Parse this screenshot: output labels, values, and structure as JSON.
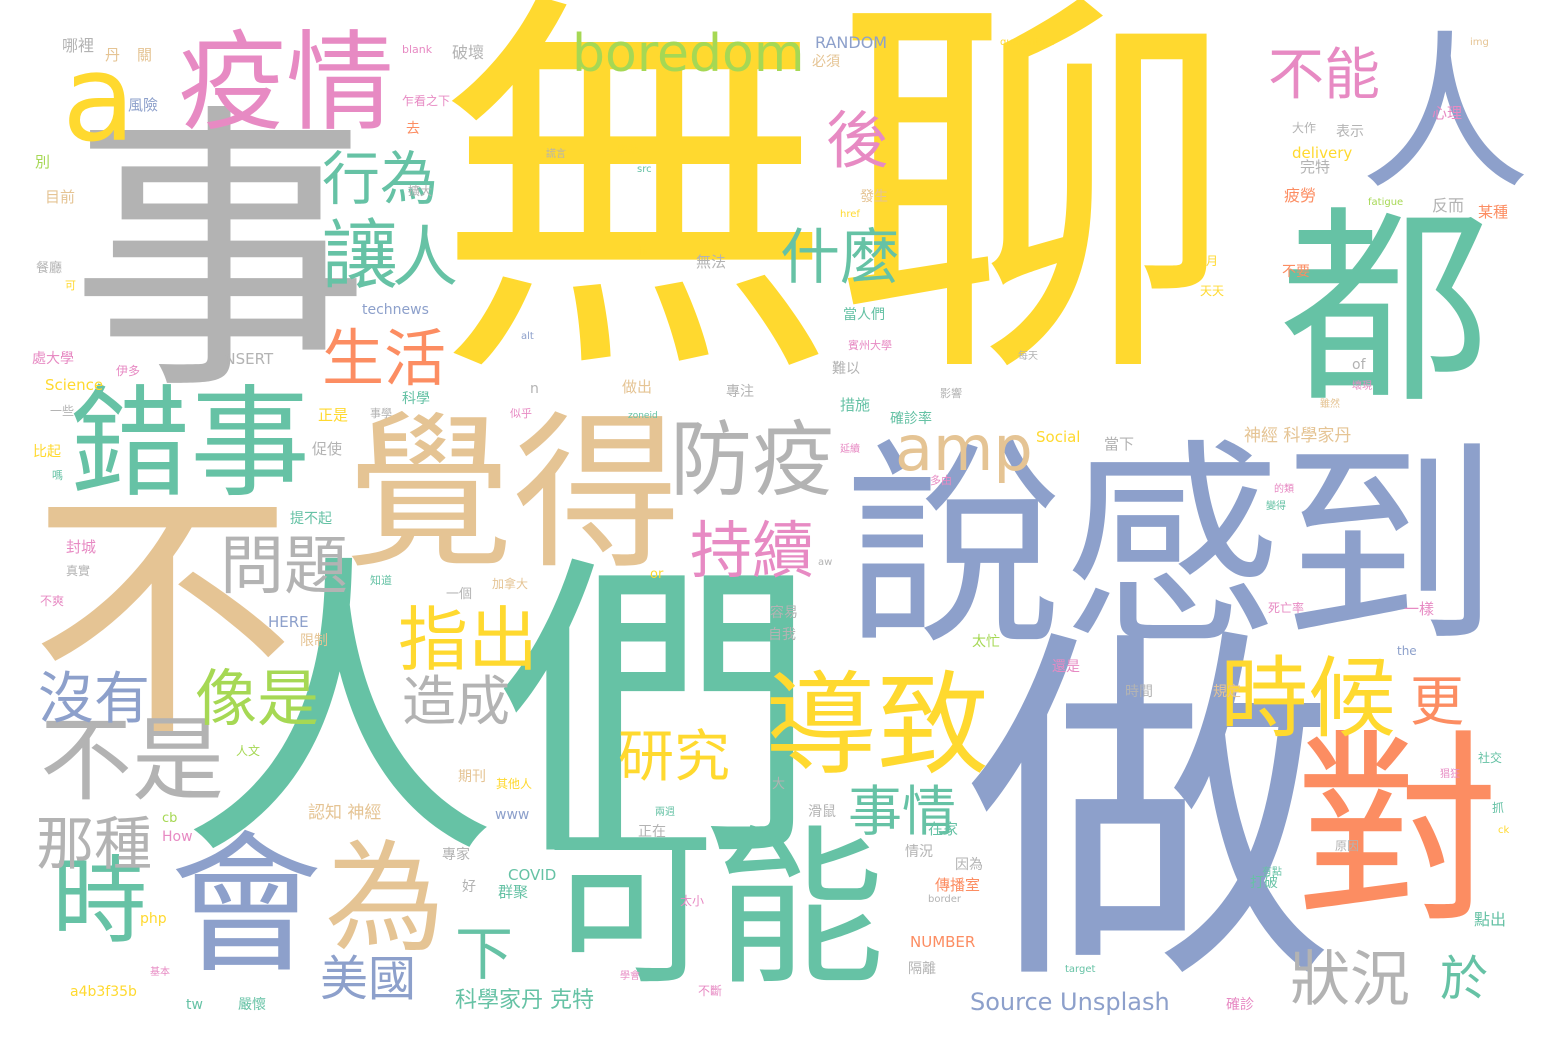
{
  "palette": {
    "yellow": "#FFD92F",
    "gray": "#B3B3B3",
    "green": "#66C2A5",
    "blue": "#8DA0CB",
    "tan": "#E5C494",
    "pink": "#E78AC3",
    "orange": "#FC8D62",
    "lime": "#A6D854"
  },
  "words": [
    {
      "text": "無聊",
      "color": "yellow"
    },
    {
      "text": "事",
      "color": "gray"
    },
    {
      "text": "人們",
      "color": "green"
    },
    {
      "text": "不",
      "color": "tan"
    },
    {
      "text": "做",
      "color": "blue"
    },
    {
      "text": "說感到",
      "color": "blue"
    },
    {
      "text": "都",
      "color": "green"
    },
    {
      "text": "覺得",
      "color": "tan"
    },
    {
      "text": "疫情",
      "color": "pink"
    },
    {
      "text": "會",
      "color": "blue"
    },
    {
      "text": "可能",
      "color": "green"
    },
    {
      "text": "對",
      "color": "orange"
    },
    {
      "text": "人",
      "color": "blue"
    },
    {
      "text": "錯事",
      "color": "green"
    },
    {
      "text": "為",
      "color": "tan"
    },
    {
      "text": "導致",
      "color": "yellow"
    },
    {
      "text": "防疫",
      "color": "gray"
    },
    {
      "text": "時候",
      "color": "yellow"
    },
    {
      "text": "不是",
      "color": "gray"
    },
    {
      "text": "a",
      "color": "yellow"
    },
    {
      "text": "boredom",
      "color": "lime"
    },
    {
      "text": "不能",
      "color": "pink"
    },
    {
      "text": "時",
      "color": "green"
    },
    {
      "text": "後",
      "color": "pink"
    },
    {
      "text": "讓",
      "color": "green"
    },
    {
      "text": "人",
      "color": "green"
    },
    {
      "text": "行為",
      "color": "green"
    },
    {
      "text": "什麼",
      "color": "green"
    },
    {
      "text": "amp",
      "color": "tan"
    },
    {
      "text": "生活",
      "color": "orange"
    },
    {
      "text": "持續",
      "color": "pink"
    },
    {
      "text": "指出",
      "color": "yellow"
    },
    {
      "text": "問題",
      "color": "gray"
    },
    {
      "text": "像是",
      "color": "lime"
    },
    {
      "text": "沒有",
      "color": "blue"
    },
    {
      "text": "造成",
      "color": "gray"
    },
    {
      "text": "研究",
      "color": "yellow"
    },
    {
      "text": "那種",
      "color": "gray"
    },
    {
      "text": "事情",
      "color": "green"
    },
    {
      "text": "更",
      "color": "orange"
    },
    {
      "text": "下",
      "color": "green"
    },
    {
      "text": "美國",
      "color": "blue"
    },
    {
      "text": "狀況",
      "color": "gray"
    },
    {
      "text": "於",
      "color": "green"
    },
    {
      "text": "Source Unsplash",
      "color": "blue"
    },
    {
      "text": "科學家丹 克特",
      "color": "green"
    },
    {
      "text": "RANDOM",
      "color": "blue"
    },
    {
      "text": "NUMBER",
      "color": "orange"
    },
    {
      "text": "INSERT",
      "color": "gray"
    },
    {
      "text": "HERE",
      "color": "blue"
    },
    {
      "text": "COVID",
      "color": "green"
    },
    {
      "text": "technews",
      "color": "blue"
    },
    {
      "text": "Science",
      "color": "yellow"
    },
    {
      "text": "Social",
      "color": "yellow"
    },
    {
      "text": "delivery",
      "color": "yellow"
    },
    {
      "text": "認知 神經",
      "color": "tan"
    },
    {
      "text": "神經 科學家丹",
      "color": "tan"
    },
    {
      "text": "a4b3f35b",
      "color": "yellow"
    },
    {
      "text": "php",
      "color": "yellow"
    },
    {
      "text": "How",
      "color": "pink"
    },
    {
      "text": "tw",
      "color": "green"
    },
    {
      "text": "www",
      "color": "blue"
    },
    {
      "text": "cb",
      "color": "lime"
    },
    {
      "text": "or",
      "color": "yellow"
    },
    {
      "text": "of",
      "color": "gray"
    },
    {
      "text": "n",
      "color": "gray"
    },
    {
      "text": "the",
      "color": "blue"
    },
    {
      "text": "blank",
      "color": "pink"
    },
    {
      "text": "quarantine",
      "color": "yellow"
    },
    {
      "text": "img",
      "color": "tan"
    },
    {
      "text": "fatigue",
      "color": "lime"
    },
    {
      "text": "target",
      "color": "green"
    },
    {
      "text": "border",
      "color": "gray"
    },
    {
      "text": "src",
      "color": "green"
    },
    {
      "text": "zoneid",
      "color": "green"
    },
    {
      "text": "href",
      "color": "yellow"
    },
    {
      "text": "alt",
      "color": "blue"
    },
    {
      "text": "aw",
      "color": "gray"
    },
    {
      "text": "ck",
      "color": "yellow"
    },
    {
      "text": "哪裡",
      "color": "gray"
    },
    {
      "text": "丹",
      "color": "tan"
    },
    {
      "text": "關",
      "color": "tan"
    },
    {
      "text": "破壞",
      "color": "gray"
    },
    {
      "text": "風險",
      "color": "blue"
    },
    {
      "text": "乍看之下",
      "color": "pink"
    },
    {
      "text": "必須",
      "color": "tan"
    },
    {
      "text": "去",
      "color": "orange"
    },
    {
      "text": "別",
      "color": "lime"
    },
    {
      "text": "目前",
      "color": "tan"
    },
    {
      "text": "擴大",
      "color": "gray"
    },
    {
      "text": "心理",
      "color": "pink"
    },
    {
      "text": "表示",
      "color": "gray"
    },
    {
      "text": "大作",
      "color": "gray"
    },
    {
      "text": "完特",
      "color": "gray"
    },
    {
      "text": "疲勞",
      "color": "orange"
    },
    {
      "text": "反而",
      "color": "gray"
    },
    {
      "text": "某種",
      "color": "orange"
    },
    {
      "text": "發生",
      "color": "tan"
    },
    {
      "text": "無法",
      "color": "gray"
    },
    {
      "text": "並",
      "color": "yellow"
    },
    {
      "text": "月",
      "color": "yellow"
    },
    {
      "text": "天天",
      "color": "yellow"
    },
    {
      "text": "不要",
      "color": "orange"
    },
    {
      "text": "當人們",
      "color": "green"
    },
    {
      "text": "賓州大學",
      "color": "pink"
    },
    {
      "text": "難以",
      "color": "gray"
    },
    {
      "text": "措施",
      "color": "green"
    },
    {
      "text": "確診率",
      "color": "green"
    },
    {
      "text": "做出",
      "color": "tan"
    },
    {
      "text": "專注",
      "color": "gray"
    },
    {
      "text": "科學",
      "color": "green"
    },
    {
      "text": "正是",
      "color": "yellow"
    },
    {
      "text": "事學",
      "color": "gray"
    },
    {
      "text": "促使",
      "color": "gray"
    },
    {
      "text": "提不起",
      "color": "green"
    },
    {
      "text": "比起",
      "color": "yellow"
    },
    {
      "text": "當下",
      "color": "gray"
    },
    {
      "text": "封城",
      "color": "pink"
    },
    {
      "text": "真實",
      "color": "gray"
    },
    {
      "text": "不爽",
      "color": "pink"
    },
    {
      "text": "一個",
      "color": "gray"
    },
    {
      "text": "加拿大",
      "color": "tan"
    },
    {
      "text": "知道",
      "color": "green"
    },
    {
      "text": "容易",
      "color": "gray"
    },
    {
      "text": "自我",
      "color": "gray"
    },
    {
      "text": "限制",
      "color": "tan"
    },
    {
      "text": "一樣",
      "color": "pink"
    },
    {
      "text": "死亡率",
      "color": "pink"
    },
    {
      "text": "太忙",
      "color": "lime"
    },
    {
      "text": "還是",
      "color": "pink"
    },
    {
      "text": "時間",
      "color": "gray"
    },
    {
      "text": "規定",
      "color": "tan"
    },
    {
      "text": "人文",
      "color": "lime"
    },
    {
      "text": "期刊",
      "color": "tan"
    },
    {
      "text": "其他人",
      "color": "yellow"
    },
    {
      "text": "大",
      "color": "gray"
    },
    {
      "text": "滑鼠",
      "color": "gray"
    },
    {
      "text": "正在",
      "color": "gray"
    },
    {
      "text": "在家",
      "color": "green"
    },
    {
      "text": "專家",
      "color": "gray"
    },
    {
      "text": "情況",
      "color": "gray"
    },
    {
      "text": "因為",
      "color": "gray"
    },
    {
      "text": "傳播室",
      "color": "orange"
    },
    {
      "text": "好",
      "color": "gray"
    },
    {
      "text": "群聚",
      "color": "green"
    },
    {
      "text": "太小",
      "color": "pink"
    },
    {
      "text": "打破",
      "color": "green"
    },
    {
      "text": "點出",
      "color": "green"
    },
    {
      "text": "隔離",
      "color": "gray"
    },
    {
      "text": "嚴懷",
      "color": "green"
    },
    {
      "text": "不斷",
      "color": "pink"
    },
    {
      "text": "確診",
      "color": "pink"
    },
    {
      "text": "抓",
      "color": "green"
    },
    {
      "text": "社交",
      "color": "green"
    },
    {
      "text": "餐廳",
      "color": "gray"
    },
    {
      "text": "處大學",
      "color": "pink"
    },
    {
      "text": "伊多",
      "color": "pink"
    },
    {
      "text": "一些",
      "color": "gray"
    },
    {
      "text": "嗎",
      "color": "green"
    },
    {
      "text": "可",
      "color": "yellow"
    },
    {
      "text": "原因",
      "color": "gray"
    },
    {
      "text": "似乎",
      "color": "pink"
    },
    {
      "text": "影響",
      "color": "gray"
    },
    {
      "text": "每天",
      "color": "gray"
    },
    {
      "text": "多由",
      "color": "pink"
    },
    {
      "text": "的類",
      "color": "pink"
    },
    {
      "text": "變得",
      "color": "green"
    },
    {
      "text": "延續",
      "color": "pink"
    },
    {
      "text": "壞現",
      "color": "pink"
    },
    {
      "text": "有點",
      "color": "green"
    },
    {
      "text": "猖狂",
      "color": "pink"
    },
    {
      "text": "雖然",
      "color": "tan"
    },
    {
      "text": "基本",
      "color": "pink"
    },
    {
      "text": "學會",
      "color": "pink"
    },
    {
      "text": "兩週",
      "color": "green"
    },
    {
      "text": "謊言",
      "color": "gray"
    },
    {
      "text": "驅動",
      "color": "yellow"
    }
  ]
}
